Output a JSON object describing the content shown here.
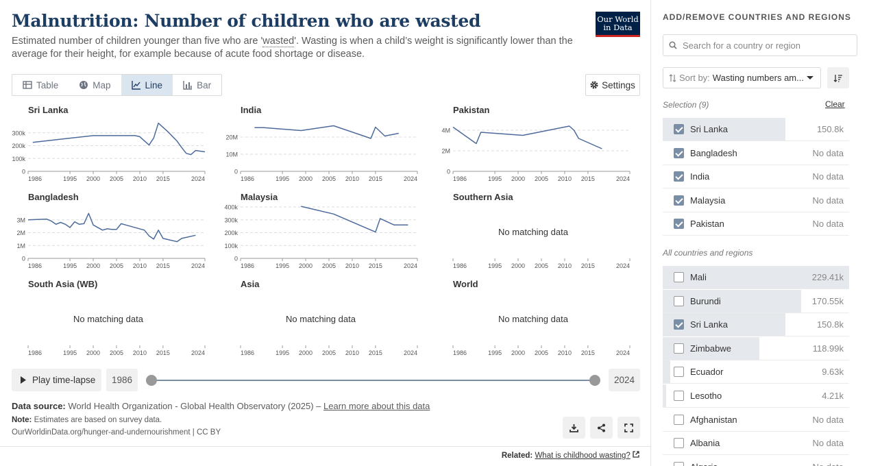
{
  "header": {
    "title": "Malnutrition: Number of children who are wasted",
    "subtitle_pre": "Estimated number of children younger than five who are '",
    "subtitle_term": "wasted",
    "subtitle_post": "'. Wasting is when a child’s weight is significantly lower than the average for their height, for example because of acute food shortage or disease.",
    "logo_line1": "Our World",
    "logo_line2": "in Data"
  },
  "tabs": [
    {
      "label": "Table",
      "icon": "table-icon"
    },
    {
      "label": "Map",
      "icon": "globe-icon"
    },
    {
      "label": "Line",
      "icon": "line-chart-icon",
      "active": true
    },
    {
      "label": "Bar",
      "icon": "bar-chart-icon"
    }
  ],
  "settings_label": "Settings",
  "no_data_text": "No matching data",
  "colors": {
    "line": "#4c6a9c",
    "grid": "#dddddd",
    "navy": "#1d3d63"
  },
  "chart_data": [
    {
      "type": "line",
      "title": "Sri Lanka",
      "xlim": [
        1986,
        2024
      ],
      "x_ticks": [
        "1986",
        "1995",
        "2000",
        "2005",
        "2010",
        "2015",
        "2024"
      ],
      "ylim": [
        0,
        400000
      ],
      "y_ticks": [
        {
          "v": 0,
          "l": "0"
        },
        {
          "v": 100000,
          "l": "100k"
        },
        {
          "v": 200000,
          "l": "200k"
        },
        {
          "v": 300000,
          "l": "300k"
        }
      ],
      "series": [
        {
          "x": [
            1987,
            1993,
            2000,
            2009,
            2010,
            2012,
            2013,
            2014,
            2016,
            2018,
            2019,
            2020,
            2021,
            2022,
            2024
          ],
          "y": [
            225000,
            250000,
            278000,
            278000,
            270000,
            205000,
            260000,
            375000,
            310000,
            235000,
            185000,
            140000,
            130000,
            162000,
            152000
          ]
        }
      ]
    },
    {
      "type": "line",
      "title": "India",
      "xlim": [
        1986,
        2024
      ],
      "x_ticks": [
        "1986",
        "1995",
        "2000",
        "2005",
        "2010",
        "2015",
        "2024"
      ],
      "ylim": [
        0,
        30000000
      ],
      "y_ticks": [
        {
          "v": 0,
          "l": "0"
        },
        {
          "v": 10000000,
          "l": "10M"
        },
        {
          "v": 20000000,
          "l": "20M"
        }
      ],
      "series": [
        {
          "x": [
            1989,
            1991,
            1999,
            2006,
            2014,
            2015,
            2017,
            2020
          ],
          "y": [
            25500000,
            25500000,
            23800000,
            26600000,
            19200000,
            25800000,
            20600000,
            22200000
          ]
        }
      ]
    },
    {
      "type": "line",
      "title": "Pakistan",
      "xlim": [
        1986,
        2024
      ],
      "x_ticks": [
        "1986",
        "1995",
        "2000",
        "2005",
        "2010",
        "2015",
        "2024"
      ],
      "ylim": [
        0,
        5000000
      ],
      "y_ticks": [
        {
          "v": 0,
          "l": "0"
        },
        {
          "v": 2000000,
          "l": "2M"
        },
        {
          "v": 4000000,
          "l": "4M"
        }
      ],
      "series": [
        {
          "x": [
            1986,
            1991,
            1992,
            2001,
            2011,
            2012,
            2013,
            2018
          ],
          "y": [
            4300000,
            2700000,
            3800000,
            3500000,
            4400000,
            4000000,
            3200000,
            2200000
          ]
        }
      ]
    },
    {
      "type": "line",
      "title": "Bangladesh",
      "xlim": [
        1986,
        2024
      ],
      "x_ticks": [
        "1986",
        "1995",
        "2000",
        "2005",
        "2010",
        "2015",
        "2024"
      ],
      "ylim": [
        0,
        4000000
      ],
      "y_ticks": [
        {
          "v": 0,
          "l": "0"
        },
        {
          "v": 1000000,
          "l": "1M"
        },
        {
          "v": 2000000,
          "l": "2M"
        },
        {
          "v": 3000000,
          "l": "3M"
        }
      ],
      "series": [
        {
          "x": [
            1986,
            1990,
            1991,
            1992,
            1993,
            1994,
            1995,
            1996,
            1997,
            1998,
            1999,
            2000,
            2002,
            2003,
            2004,
            2005,
            2006,
            2007,
            2011,
            2012,
            2013,
            2014,
            2015,
            2018,
            2019,
            2022
          ],
          "y": [
            3000000,
            3050000,
            2900000,
            2650000,
            2800000,
            2650000,
            2400000,
            2850000,
            2650000,
            2700000,
            3500000,
            2600000,
            2200000,
            2300000,
            2250000,
            2250000,
            2700000,
            2600000,
            2200000,
            1750000,
            1500000,
            2200000,
            1550000,
            1300000,
            1550000,
            1800000
          ]
        }
      ]
    },
    {
      "type": "line",
      "title": "Malaysia",
      "xlim": [
        1986,
        2024
      ],
      "x_ticks": [
        "1986",
        "1995",
        "2000",
        "2005",
        "2010",
        "2015",
        "2024"
      ],
      "ylim": [
        0,
        400000
      ],
      "y_ticks": [
        {
          "v": 0,
          "l": "0"
        },
        {
          "v": 100000,
          "l": "100k"
        },
        {
          "v": 200000,
          "l": "200k"
        },
        {
          "v": 300000,
          "l": "300k"
        },
        {
          "v": 400000,
          "l": "400k"
        }
      ],
      "series": [
        {
          "x": [
            1999,
            2006,
            2015,
            2016,
            2019,
            2022
          ],
          "y": [
            405000,
            345000,
            205000,
            310000,
            260000,
            260000
          ]
        }
      ]
    },
    {
      "type": "line",
      "title": "Southern Asia",
      "xlim": [
        1986,
        2024
      ],
      "x_ticks": [
        "1986",
        "1995",
        "2000",
        "2005",
        "2010",
        "2015",
        "2024"
      ],
      "series": []
    },
    {
      "type": "line",
      "title": "South Asia (WB)",
      "xlim": [
        1986,
        2024
      ],
      "x_ticks": [
        "1986",
        "1995",
        "2000",
        "2005",
        "2010",
        "2015",
        "2024"
      ],
      "series": []
    },
    {
      "type": "line",
      "title": "Asia",
      "xlim": [
        1986,
        2024
      ],
      "x_ticks": [
        "1986",
        "1995",
        "2000",
        "2005",
        "2010",
        "2015",
        "2024"
      ],
      "series": []
    },
    {
      "type": "line",
      "title": "World",
      "xlim": [
        1986,
        2024
      ],
      "x_ticks": [
        "1986",
        "1995",
        "2000",
        "2005",
        "2010",
        "2015",
        "2024"
      ],
      "series": []
    }
  ],
  "timeline": {
    "play_label": "Play time-lapse",
    "start_year": "1986",
    "end_year": "2024"
  },
  "footer": {
    "source_label": "Data source:",
    "source_text": "World Health Organization - Global Health Observatory (2025) –",
    "source_link": "Learn more about this data",
    "note_label": "Note:",
    "note_text": "Estimates are based on survey data.",
    "url": "OurWorldinData.org/hunger-and-undernourishment | CC BY",
    "related_label": "Related:",
    "related_link": "What is childhood wasting?"
  },
  "sidebar": {
    "title": "ADD/REMOVE COUNTRIES AND REGIONS",
    "search_placeholder": "Search for a country or region",
    "sort_label": "Sort by:",
    "sort_value": "Wasting numbers am...",
    "selection_header": "Selection (9)",
    "clear_label": "Clear",
    "all_header": "All countries and regions",
    "selected": [
      {
        "name": "Sri Lanka",
        "value": "150.8k",
        "checked": true,
        "bar": 0.658
      },
      {
        "name": "Bangladesh",
        "value": "No data",
        "checked": true,
        "bar": 0
      },
      {
        "name": "India",
        "value": "No data",
        "checked": true,
        "bar": 0
      },
      {
        "name": "Malaysia",
        "value": "No data",
        "checked": true,
        "bar": 0
      },
      {
        "name": "Pakistan",
        "value": "No data",
        "checked": true,
        "bar": 0
      }
    ],
    "all": [
      {
        "name": "Mali",
        "value": "229.41k",
        "checked": false,
        "bar": 1.0
      },
      {
        "name": "Burundi",
        "value": "170.55k",
        "checked": false,
        "bar": 0.743
      },
      {
        "name": "Sri Lanka",
        "value": "150.8k",
        "checked": true,
        "bar": 0.658
      },
      {
        "name": "Zimbabwe",
        "value": "118.99k",
        "checked": false,
        "bar": 0.519
      },
      {
        "name": "Ecuador",
        "value": "9.63k",
        "checked": false,
        "bar": 0.042
      },
      {
        "name": "Lesotho",
        "value": "4.21k",
        "checked": false,
        "bar": 0.018
      },
      {
        "name": "Afghanistan",
        "value": "No data",
        "checked": false,
        "bar": 0
      },
      {
        "name": "Albania",
        "value": "No data",
        "checked": false,
        "bar": 0
      },
      {
        "name": "Algeria",
        "value": "No data",
        "checked": false,
        "bar": 0
      }
    ]
  }
}
